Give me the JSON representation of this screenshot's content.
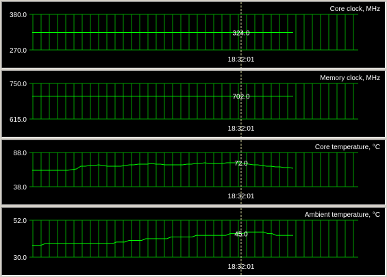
{
  "colors": {
    "background": "#000000",
    "grid": "#00a000",
    "trace": "#00ff00",
    "text": "#ffffff",
    "cursor": "#d8d8a0"
  },
  "cursor_time": "18:32:01",
  "chart_data": [
    {
      "type": "line",
      "title": "Core clock, MHz",
      "ylim": [
        270.0,
        380.0
      ],
      "ytick_labels": [
        "380.0",
        "270.0"
      ],
      "current_value": "324.0",
      "series": [
        {
          "values": [
            324,
            324,
            324,
            324,
            324,
            324,
            324,
            324,
            324,
            324,
            324,
            324,
            324,
            324,
            324,
            324,
            324,
            324,
            324,
            324
          ]
        }
      ]
    },
    {
      "type": "line",
      "title": "Memory clock, MHz",
      "ylim": [
        615.0,
        750.0
      ],
      "ytick_labels": [
        "750.0",
        "615.0"
      ],
      "current_value": "702.0",
      "series": [
        {
          "values": [
            702,
            702,
            702,
            702,
            702,
            702,
            702,
            702,
            702,
            702,
            702,
            702,
            702,
            702,
            702,
            702,
            702,
            702,
            702,
            702
          ]
        }
      ]
    },
    {
      "type": "line",
      "title": "Core temperature, °C",
      "ylim": [
        38.0,
        88.0
      ],
      "ytick_labels": [
        "88.0",
        "38.0"
      ],
      "current_value": "72.0",
      "series": [
        {
          "values": [
            62,
            62,
            62,
            62,
            62,
            62,
            62,
            62,
            62,
            63,
            64,
            68,
            68,
            69,
            69,
            70,
            69,
            68,
            68,
            68,
            68,
            69,
            70,
            70,
            71,
            71,
            71,
            72,
            71,
            71,
            70,
            70,
            70,
            70,
            70,
            71,
            71,
            72,
            72,
            73,
            72,
            72,
            72,
            72,
            73,
            73,
            73,
            73,
            72,
            71,
            70,
            70,
            69,
            68,
            68,
            67,
            67,
            66,
            66,
            65
          ]
        }
      ]
    },
    {
      "type": "line",
      "title": "Ambient temperature, °C",
      "ylim": [
        30.0,
        52.0
      ],
      "ytick_labels": [
        "52.0",
        "30.0"
      ],
      "current_value": "45.0",
      "series": [
        {
          "values": [
            37,
            37,
            37,
            38,
            38,
            38,
            38,
            38,
            38,
            38,
            38,
            38,
            38,
            38,
            38,
            38,
            38,
            38,
            38,
            38,
            39,
            39,
            39,
            40,
            40,
            40,
            40,
            41,
            41,
            41,
            41,
            41,
            41,
            42,
            42,
            42,
            42,
            42,
            42,
            43,
            43,
            43,
            43,
            43,
            43,
            43,
            43,
            44,
            44,
            44,
            44,
            45,
            45,
            45,
            45,
            45,
            44,
            44,
            43,
            43,
            43,
            43,
            43
          ]
        }
      ]
    }
  ]
}
